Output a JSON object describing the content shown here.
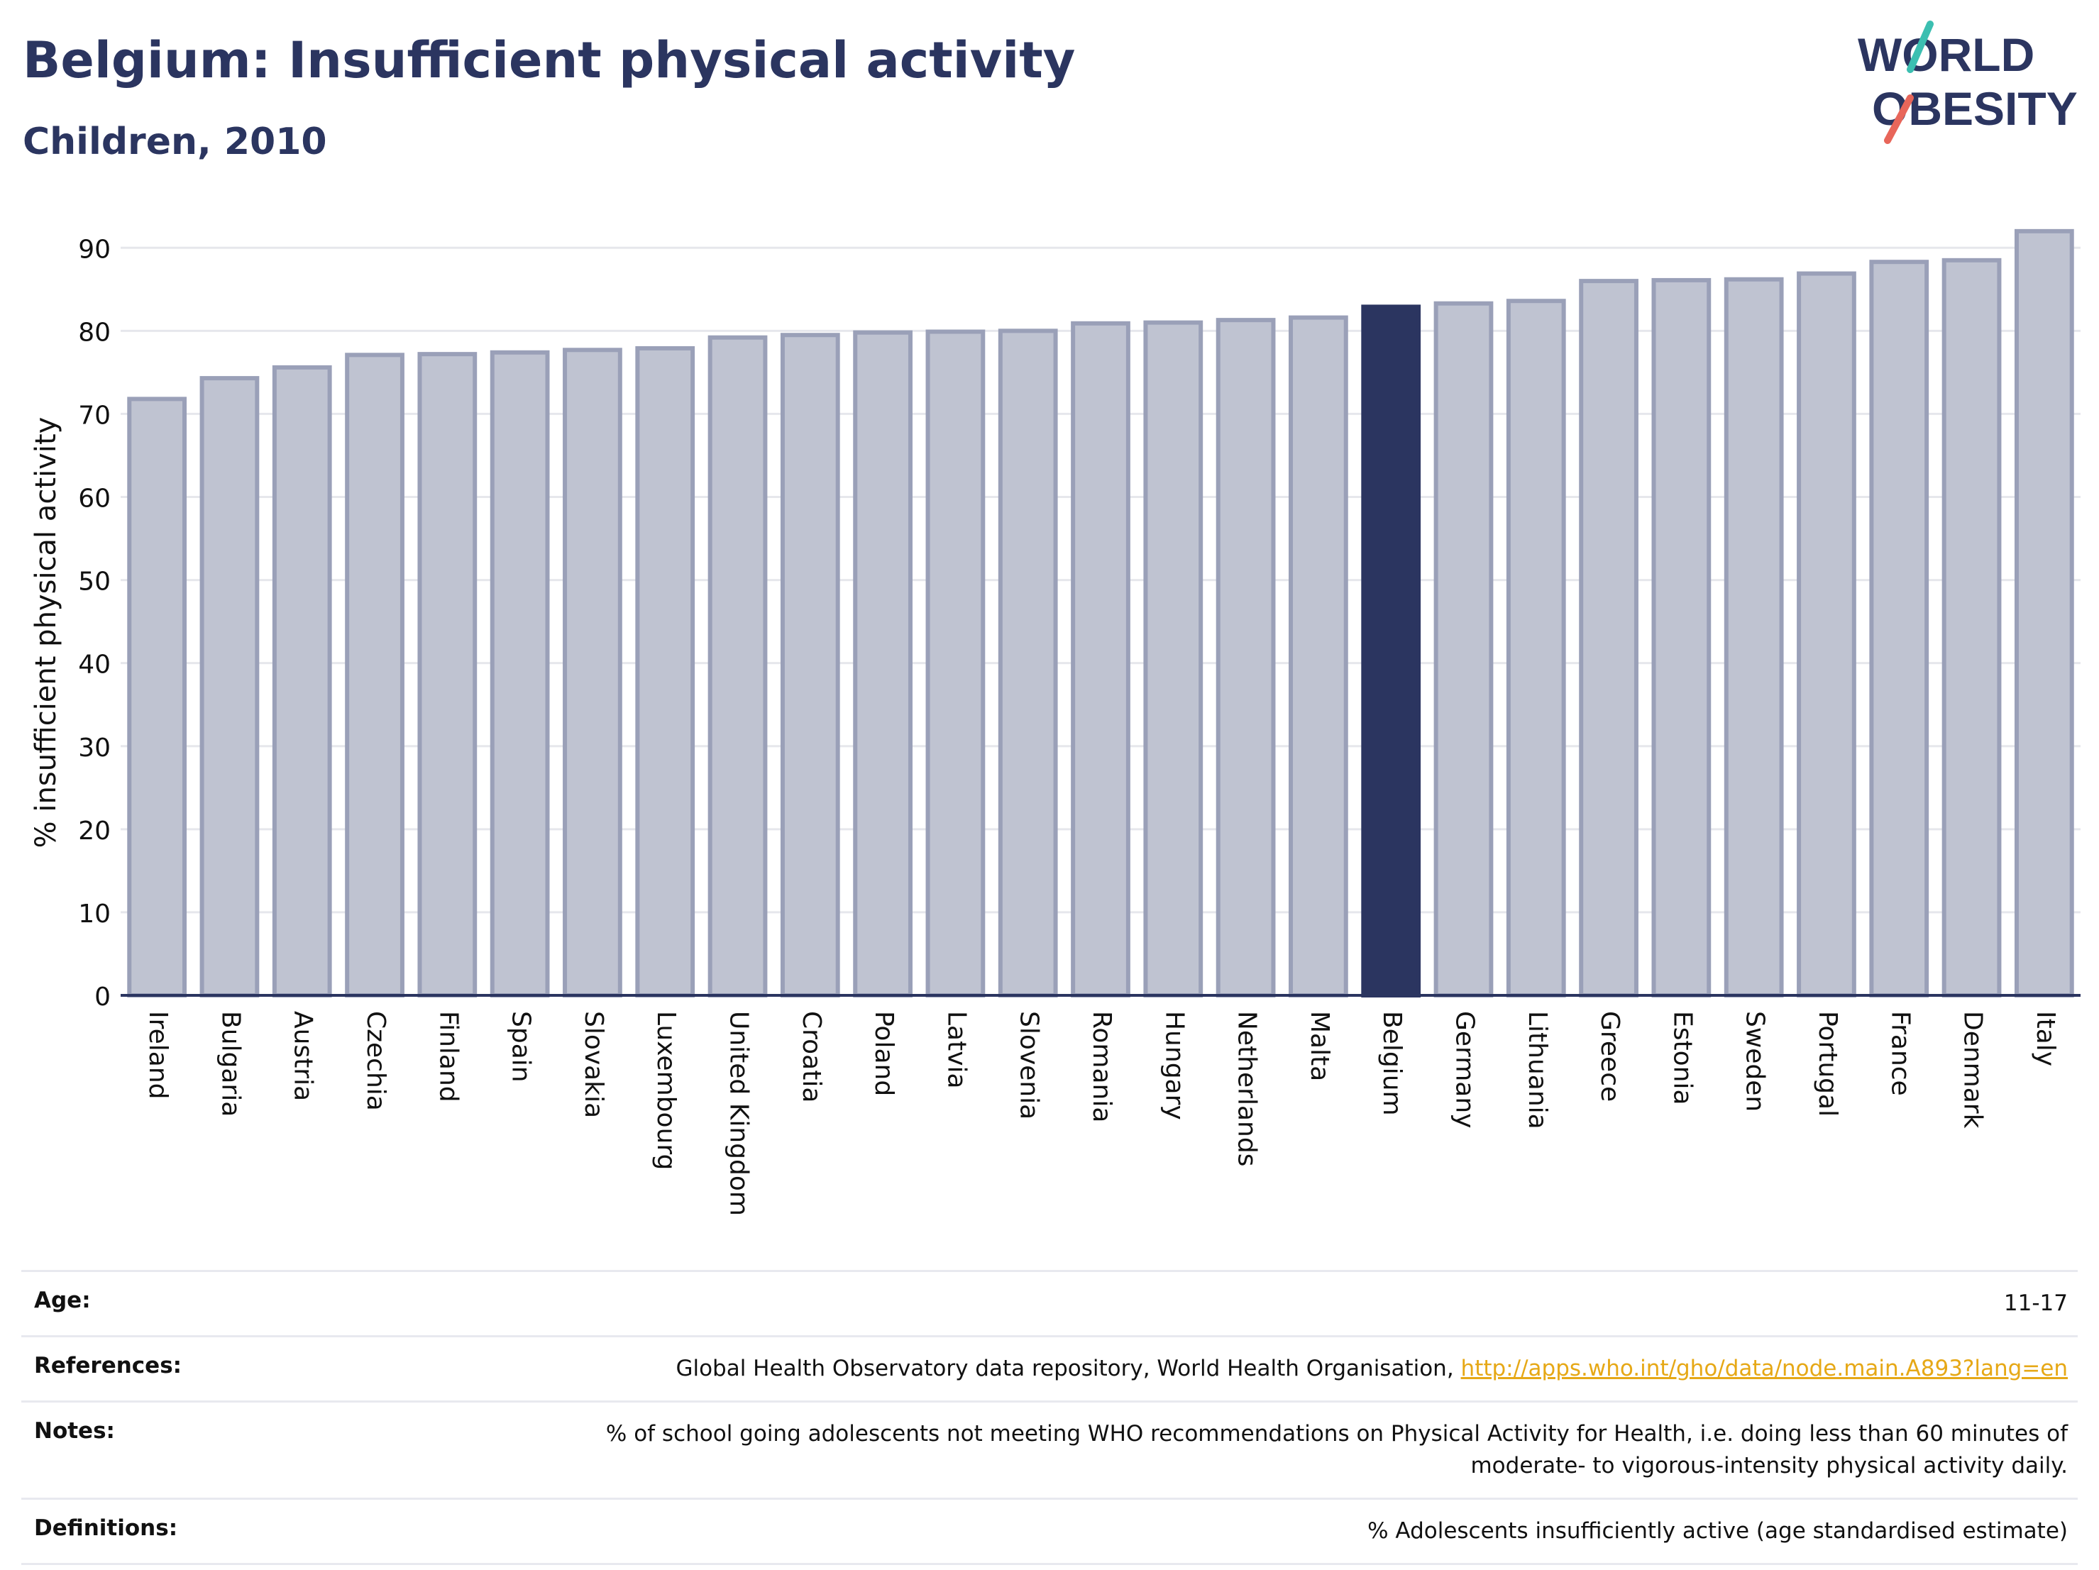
{
  "header": {
    "title": "Belgium: Insufficient physical activity",
    "subtitle": "Children, 2010"
  },
  "logo": {
    "line1": "WORLD",
    "line2": "OBESITY",
    "text_color": "#2b3560",
    "slash_top_color": "#3cbfb1",
    "slash_bottom_color": "#e8665a"
  },
  "colors": {
    "bar_default": "#bfc3d1",
    "bar_default_stroke": "#9aa0b8",
    "bar_highlight": "#2b3560",
    "axis": "#2b3560",
    "grid": "#e6e7ec",
    "link": "#e6a816"
  },
  "chart_data": {
    "type": "bar",
    "title": "Belgium: Insufficient physical activity",
    "subtitle": "Children, 2010",
    "ylabel": "% insufficient physical activity",
    "xlabel": "",
    "ylim": [
      0,
      92.5
    ],
    "yticks": [
      0,
      10,
      20,
      30,
      40,
      50,
      60,
      70,
      80,
      90
    ],
    "grid": true,
    "highlight": "Belgium",
    "categories": [
      "Ireland",
      "Bulgaria",
      "Austria",
      "Czechia",
      "Finland",
      "Spain",
      "Slovakia",
      "Luxembourg",
      "United Kingdom",
      "Croatia",
      "Poland",
      "Latvia",
      "Slovenia",
      "Romania",
      "Hungary",
      "Netherlands",
      "Malta",
      "Belgium",
      "Germany",
      "Lithuania",
      "Greece",
      "Estonia",
      "Sweden",
      "Portugal",
      "France",
      "Denmark",
      "Italy"
    ],
    "values": [
      71.8,
      74.3,
      75.6,
      77.1,
      77.2,
      77.4,
      77.7,
      77.9,
      79.2,
      79.5,
      79.8,
      79.9,
      80.0,
      80.9,
      81.0,
      81.3,
      81.6,
      82.9,
      83.3,
      83.6,
      86.0,
      86.1,
      86.2,
      86.9,
      88.3,
      88.5,
      92.0
    ]
  },
  "info": {
    "age_label": "Age:",
    "age_value": "11-17",
    "references_label": "References:",
    "references_text": "Global Health Observatory data repository, World Health Organisation, ",
    "references_link": "http://apps.who.int/gho/data/node.main.A893?lang=en",
    "notes_label": "Notes:",
    "notes_line1": "% of school going adolescents not meeting WHO recommendations on Physical Activity for Health, i.e. doing less than 60 minutes of",
    "notes_line2": "moderate- to vigorous-intensity physical activity daily.",
    "definitions_label": "Definitions:",
    "definitions_value": "% Adolescents insufficiently active (age standardised estimate)"
  }
}
